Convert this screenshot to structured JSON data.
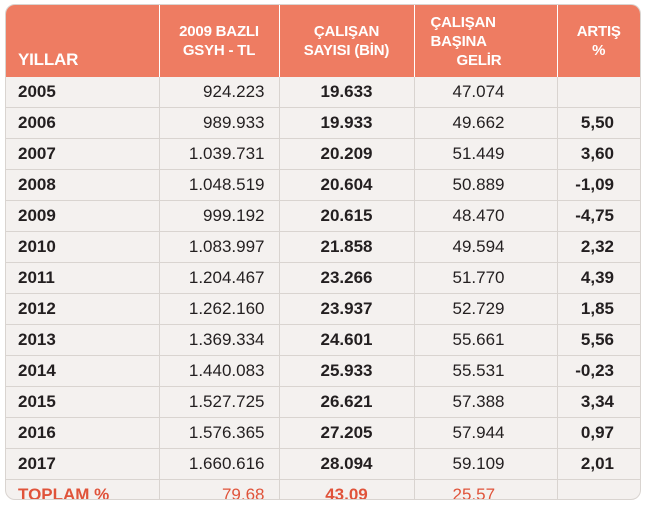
{
  "headers": {
    "years": "YILLAR",
    "gsyh": [
      "2009 BAZLI",
      "GSYH - TL"
    ],
    "employees": [
      "ÇALIŞAN",
      "SAYISI (BİN)"
    ],
    "income": [
      "ÇALIŞAN BAŞINA",
      "GELİR"
    ],
    "growth": [
      "ARTIŞ",
      "%"
    ]
  },
  "rows": [
    {
      "year": "2005",
      "gsyh": "924.223",
      "employees": "19.633",
      "income": "47.074",
      "growth": ""
    },
    {
      "year": "2006",
      "gsyh": "989.933",
      "employees": "19.933",
      "income": "49.662",
      "growth": "5,50"
    },
    {
      "year": "2007",
      "gsyh": "1.039.731",
      "employees": "20.209",
      "income": "51.449",
      "growth": "3,60"
    },
    {
      "year": "2008",
      "gsyh": "1.048.519",
      "employees": "20.604",
      "income": "50.889",
      "growth": "-1,09"
    },
    {
      "year": "2009",
      "gsyh": "999.192",
      "employees": "20.615",
      "income": "48.470",
      "growth": "-4,75"
    },
    {
      "year": "2010",
      "gsyh": "1.083.997",
      "employees": "21.858",
      "income": "49.594",
      "growth": "2,32"
    },
    {
      "year": "2011",
      "gsyh": "1.204.467",
      "employees": "23.266",
      "income": "51.770",
      "growth": "4,39"
    },
    {
      "year": "2012",
      "gsyh": "1.262.160",
      "employees": "23.937",
      "income": "52.729",
      "growth": "1,85"
    },
    {
      "year": "2013",
      "gsyh": "1.369.334",
      "employees": "24.601",
      "income": "55.661",
      "growth": "5,56"
    },
    {
      "year": "2014",
      "gsyh": "1.440.083",
      "employees": "25.933",
      "income": "55.531",
      "growth": "-0,23"
    },
    {
      "year": "2015",
      "gsyh": "1.527.725",
      "employees": "26.621",
      "income": "57.388",
      "growth": "3,34"
    },
    {
      "year": "2016",
      "gsyh": "1.576.365",
      "employees": "27.205",
      "income": "57.944",
      "growth": "0,97"
    },
    {
      "year": "2017",
      "gsyh": "1.660.616",
      "employees": "28.094",
      "income": "59.109",
      "growth": "2,01"
    }
  ],
  "total": {
    "label": "TOPLAM %",
    "gsyh": "79,68",
    "employees": "43,09",
    "income": "25,57",
    "growth": ""
  },
  "colors": {
    "header_bg": "#ee7c62",
    "total_text": "#e0533a",
    "body_bg": "#f4f1ef"
  }
}
